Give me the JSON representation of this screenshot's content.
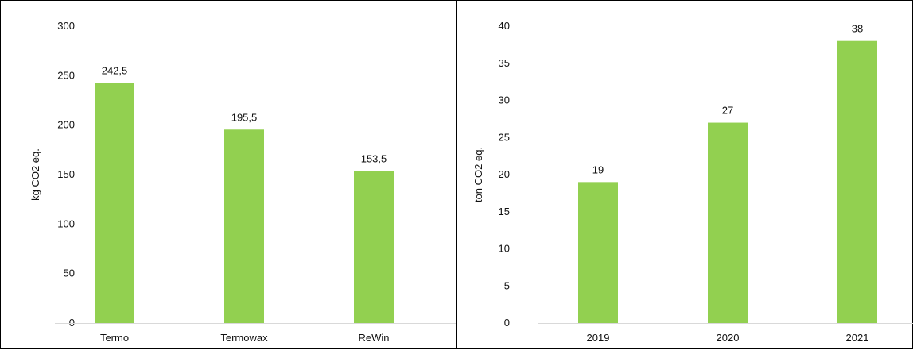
{
  "chart_data": [
    {
      "type": "bar",
      "categories": [
        "Termo",
        "Termowax",
        "ReWin"
      ],
      "values": [
        242.5,
        195.5,
        153.5
      ],
      "data_labels": [
        "242,5",
        "195,5",
        "153,5"
      ],
      "title": "",
      "xlabel": "",
      "ylabel": "kg CO2 eq.",
      "ylim": [
        0,
        300
      ],
      "yticks": [
        "0",
        "50",
        "100",
        "150",
        "200",
        "250",
        "300"
      ],
      "ytick_values": [
        0,
        50,
        100,
        150,
        200,
        250,
        300
      ],
      "bar_color": "#92d050",
      "grid": false,
      "legend": "none"
    },
    {
      "type": "bar",
      "categories": [
        "2019",
        "2020",
        "2021"
      ],
      "values": [
        19,
        27,
        38
      ],
      "data_labels": [
        "19",
        "27",
        "38"
      ],
      "title": "",
      "xlabel": "",
      "ylabel": "ton CO2 eq.",
      "ylim": [
        0,
        40
      ],
      "yticks": [
        "0",
        "5",
        "10",
        "15",
        "20",
        "25",
        "30",
        "35",
        "40"
      ],
      "ytick_values": [
        0,
        5,
        10,
        15,
        20,
        25,
        30,
        35,
        40
      ],
      "bar_color": "#92d050",
      "grid": false,
      "legend": "none"
    }
  ]
}
